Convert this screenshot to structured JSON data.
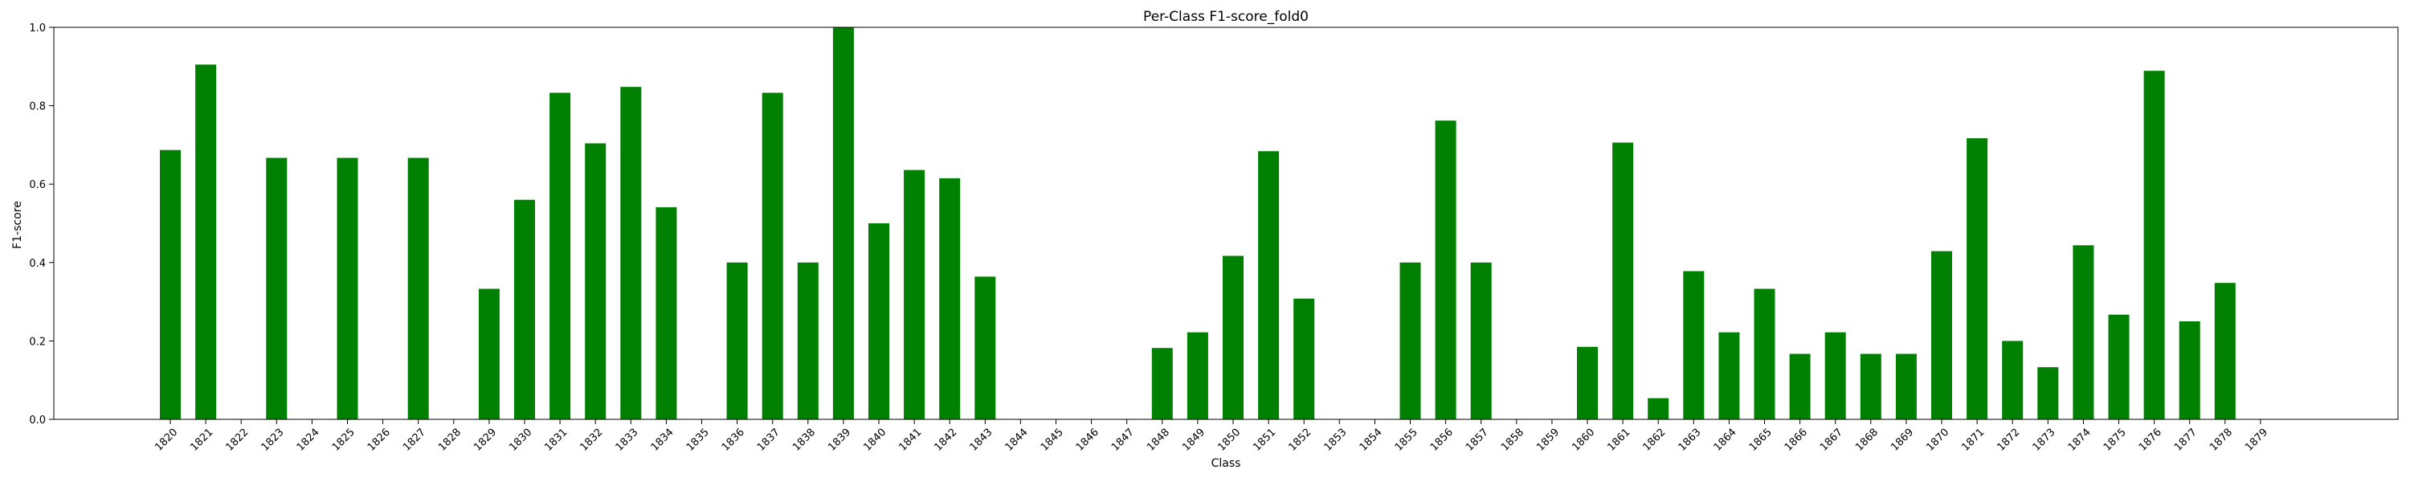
{
  "chart_data": {
    "type": "bar",
    "title": "Per-Class F1-score_fold0",
    "xlabel": "Class",
    "ylabel": "F1-score",
    "ylim": [
      0,
      1.0
    ],
    "yticks": [
      "0.0",
      "0.2",
      "0.4",
      "0.6",
      "0.8",
      "1.0"
    ],
    "grid": false,
    "legend": "none",
    "bar_color": "#008000",
    "categories": [
      "1820",
      "1821",
      "1822",
      "1823",
      "1824",
      "1825",
      "1826",
      "1827",
      "1828",
      "1829",
      "1830",
      "1831",
      "1832",
      "1833",
      "1834",
      "1835",
      "1836",
      "1837",
      "1838",
      "1839",
      "1840",
      "1841",
      "1842",
      "1843",
      "1844",
      "1845",
      "1846",
      "1847",
      "1848",
      "1849",
      "1850",
      "1851",
      "1852",
      "1853",
      "1854",
      "1855",
      "1856",
      "1857",
      "1858",
      "1859",
      "1860",
      "1861",
      "1862",
      "1863",
      "1864",
      "1865",
      "1866",
      "1867",
      "1868",
      "1869",
      "1870",
      "1871",
      "1872",
      "1873",
      "1874",
      "1875",
      "1876",
      "1877",
      "1878",
      "1879"
    ],
    "values": [
      0.687,
      0.905,
      0,
      0.667,
      0,
      0.667,
      0,
      0.667,
      0,
      0.333,
      0.56,
      0.833,
      0.704,
      0.848,
      0.541,
      0,
      0.4,
      0.833,
      0.4,
      1.0,
      0.5,
      0.636,
      0.615,
      0.364,
      0,
      0,
      0,
      0,
      0.182,
      0.222,
      0.417,
      0.684,
      0.308,
      0,
      0,
      0.4,
      0.762,
      0.4,
      0,
      0,
      0.185,
      0.706,
      0.054,
      0.378,
      0.222,
      0.333,
      0.167,
      0.222,
      0.167,
      0.167,
      0.429,
      0.717,
      0.2,
      0.133,
      0.444,
      0.267,
      0.889,
      0.25,
      0.348,
      0
    ]
  }
}
